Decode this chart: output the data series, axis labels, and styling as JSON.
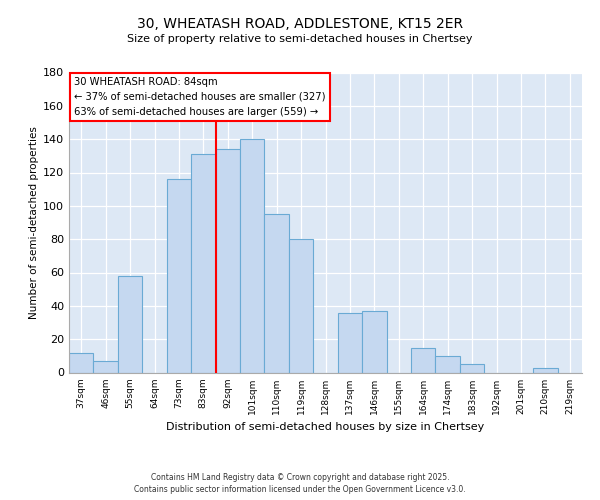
{
  "title1": "30, WHEATASH ROAD, ADDLESTONE, KT15 2ER",
  "title2": "Size of property relative to semi-detached houses in Chertsey",
  "xlabel": "Distribution of semi-detached houses by size in Chertsey",
  "ylabel": "Number of semi-detached properties",
  "bar_labels": [
    "37sqm",
    "46sqm",
    "55sqm",
    "64sqm",
    "73sqm",
    "83sqm",
    "92sqm",
    "101sqm",
    "110sqm",
    "119sqm",
    "128sqm",
    "137sqm",
    "146sqm",
    "155sqm",
    "164sqm",
    "174sqm",
    "183sqm",
    "192sqm",
    "201sqm",
    "210sqm",
    "219sqm"
  ],
  "bar_values": [
    12,
    7,
    58,
    0,
    116,
    131,
    134,
    140,
    95,
    80,
    0,
    36,
    37,
    0,
    15,
    10,
    5,
    0,
    0,
    3,
    0
  ],
  "bar_color": "#c5d8f0",
  "bar_edgecolor": "#6aaad4",
  "background_color": "#dde8f5",
  "vline_color": "red",
  "annotation_title": "30 WHEATASH ROAD: 84sqm",
  "annotation_line1": "← 37% of semi-detached houses are smaller (327)",
  "annotation_line2": "63% of semi-detached houses are larger (559) →",
  "annotation_box_color": "red",
  "ylim": [
    0,
    180
  ],
  "yticks": [
    0,
    20,
    40,
    60,
    80,
    100,
    120,
    140,
    160,
    180
  ],
  "footer1": "Contains HM Land Registry data © Crown copyright and database right 2025.",
  "footer2": "Contains public sector information licensed under the Open Government Licence v3.0."
}
